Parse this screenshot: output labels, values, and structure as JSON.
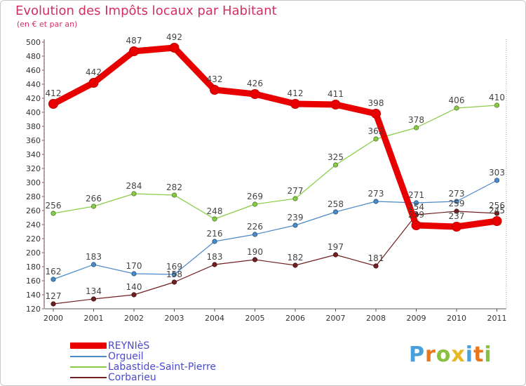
{
  "title": "Evolution des Impôts locaux par Habitant",
  "subtitle": "(en € et par an)",
  "chart_data": {
    "type": "line",
    "x": [
      "2000",
      "2001",
      "2002",
      "2003",
      "2004",
      "2005",
      "2006",
      "2007",
      "2008",
      "2009",
      "2010",
      "2011"
    ],
    "ylim": [
      120,
      500
    ],
    "yticks": [
      120,
      140,
      160,
      180,
      200,
      220,
      240,
      260,
      280,
      300,
      320,
      340,
      360,
      380,
      400,
      420,
      440,
      460,
      480,
      500
    ],
    "grid": false,
    "legend_position": "bottom-left",
    "series": [
      {
        "name": "Orgueil",
        "color": "#4a8ac8",
        "values": [
          162,
          183,
          170,
          169,
          216,
          226,
          239,
          258,
          273,
          271,
          273,
          303
        ],
        "labels": [
          "162",
          "183",
          "170",
          "169",
          "216",
          "226",
          "239",
          "258",
          "273",
          "271",
          "273",
          "303"
        ]
      },
      {
        "name": "Labastide-Saint-Pierre",
        "color": "#88cc44",
        "values": [
          256,
          266,
          284,
          282,
          248,
          269,
          277,
          325,
          362,
          378,
          406,
          410
        ],
        "labels": [
          "256",
          "266",
          "284",
          "282",
          "248",
          "269",
          "277",
          "325",
          "362",
          "378",
          "406",
          "410"
        ]
      },
      {
        "name": "Corbarieu",
        "color": "#702020",
        "values": [
          127,
          134,
          140,
          158,
          183,
          190,
          182,
          197,
          181,
          254,
          259,
          256
        ],
        "labels": [
          "127",
          "134",
          "140",
          "158",
          "183",
          "190",
          "182",
          "197",
          "181",
          "254",
          "259",
          "256"
        ]
      },
      {
        "name": "REYNIèS",
        "color": "#e80000",
        "values": [
          412,
          442,
          487,
          492,
          432,
          426,
          412,
          411,
          398,
          239,
          237,
          245
        ],
        "labels": [
          "412",
          "442",
          "487",
          "492",
          "432",
          "426",
          "412",
          "411",
          "398",
          "239",
          "237",
          "245"
        ]
      }
    ]
  },
  "legend": [
    {
      "label": "REYNIèS",
      "color": "#e80000",
      "thick": true
    },
    {
      "label": "Orgueil",
      "color": "#4a8ac8",
      "thick": false
    },
    {
      "label": "Labastide-Saint-Pierre",
      "color": "#88cc44",
      "thick": false
    },
    {
      "label": "Corbarieu",
      "color": "#702020",
      "thick": false
    }
  ],
  "logo": {
    "text": "Proxiti",
    "letter_colors": [
      "#4aa0d8",
      "#e87820",
      "#88c040",
      "#e8b820",
      "#4aa0d8",
      "#e87820",
      "#88c040"
    ]
  }
}
